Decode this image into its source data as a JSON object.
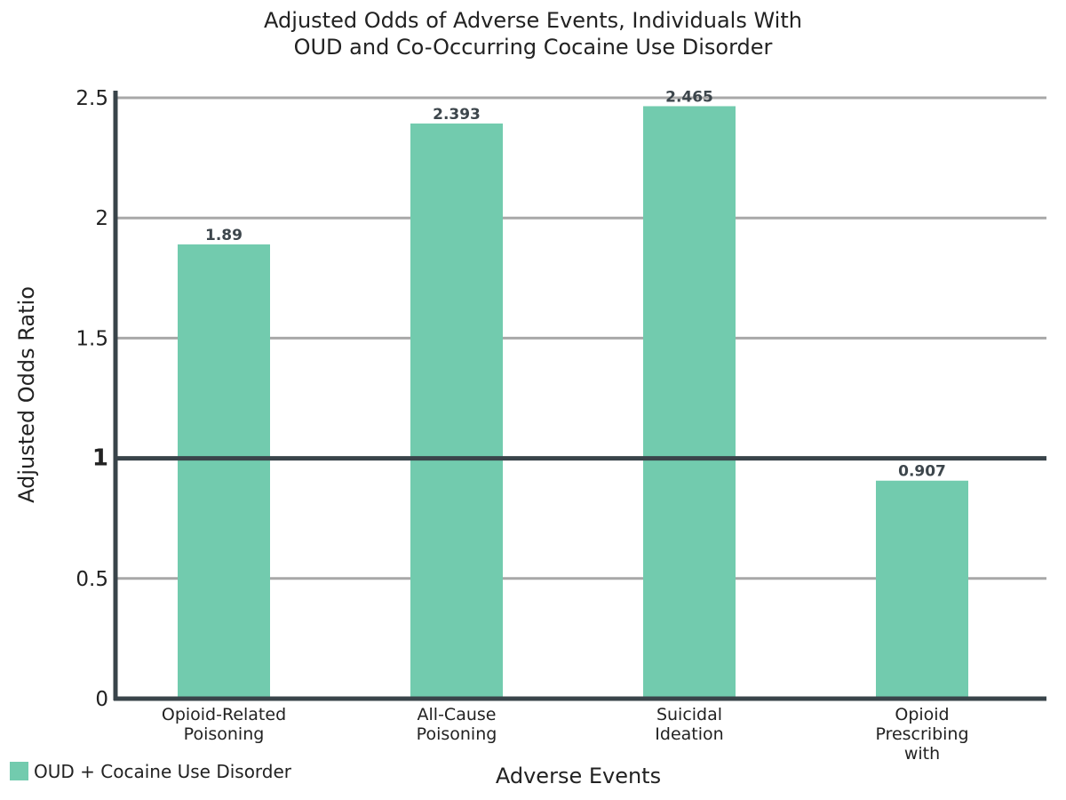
{
  "chart_data": {
    "type": "bar",
    "title": [
      "Adjusted Odds of Adverse Events, Individuals With",
      "OUD and Co-Occurring Cocaine Use Disorder"
    ],
    "xlabel": "Adverse Events",
    "ylabel": "Adjusted Odds Ratio",
    "ylim": [
      0,
      2.5
    ],
    "yticks": [
      0,
      0.5,
      1,
      1.5,
      2,
      2.5
    ],
    "ytick_labels": [
      "0",
      "0.5",
      "1",
      "1.5",
      "2",
      "2.5"
    ],
    "reference_line": 1,
    "grid": true,
    "categories": [
      [
        "Opioid-Related",
        "Poisoning"
      ],
      [
        "All-Cause",
        "Poisoning"
      ],
      [
        "Suicidal",
        "Ideation"
      ],
      [
        "Opioid",
        "Prescribing",
        "with"
      ]
    ],
    "series": [
      {
        "name": "OUD + Cocaine Use Disorder",
        "values": [
          1.89,
          2.393,
          2.465,
          0.907
        ],
        "data_labels": [
          "1.89",
          "2.393",
          "2.465",
          "0.907"
        ],
        "color": "#72cbae"
      }
    ],
    "legend": {
      "position": "bottom-left",
      "entries": [
        "OUD + Cocaine Use Disorder"
      ]
    },
    "colors": {
      "axis": "#39444a",
      "grid": "#a8a8a8",
      "reference": "#39444a"
    }
  }
}
